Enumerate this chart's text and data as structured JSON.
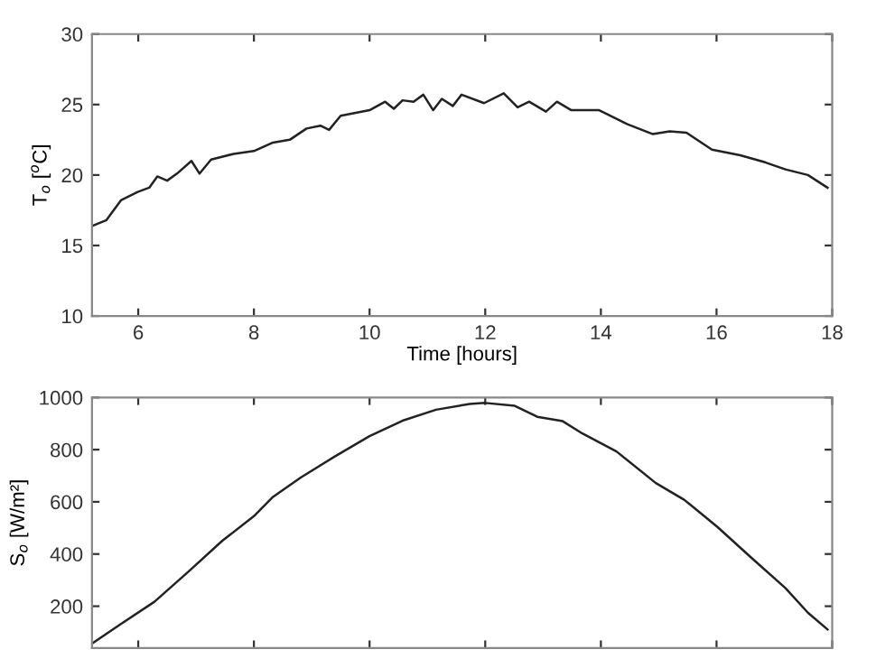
{
  "chart_data": [
    {
      "type": "line",
      "xlabel": "Time [hours]",
      "ylabel": "T$_{o}$ [$^{o}$C]",
      "xlim": [
        5.2,
        18
      ],
      "xticks": [
        6,
        8,
        10,
        12,
        14,
        16,
        18
      ],
      "ylim": [
        10,
        30
      ],
      "yticks": [
        10,
        15,
        20,
        25,
        30
      ],
      "series": [
        {
          "color": "#222222",
          "x": [
            5.21,
            5.45,
            5.7,
            5.99,
            6.19,
            6.33,
            6.5,
            6.67,
            6.92,
            7.06,
            7.26,
            7.65,
            8.0,
            8.33,
            8.62,
            8.91,
            9.15,
            9.3,
            9.5,
            10.0,
            10.27,
            10.42,
            10.57,
            10.76,
            10.93,
            11.1,
            11.25,
            11.44,
            11.59,
            11.98,
            12.32,
            12.56,
            12.76,
            13.05,
            13.24,
            13.49,
            13.97,
            14.46,
            14.9,
            15.19,
            15.48,
            15.92,
            16.41,
            16.84,
            17.19,
            17.58,
            17.92
          ],
          "values": [
            16.4,
            16.8,
            18.2,
            18.8,
            19.1,
            19.9,
            19.6,
            20.1,
            21.0,
            20.1,
            21.1,
            21.5,
            21.7,
            22.3,
            22.5,
            23.3,
            23.5,
            23.2,
            24.2,
            24.6,
            25.2,
            24.7,
            25.3,
            25.2,
            25.7,
            24.6,
            25.4,
            24.9,
            25.7,
            25.1,
            25.8,
            24.8,
            25.2,
            24.5,
            25.2,
            24.6,
            24.6,
            23.6,
            22.9,
            23.1,
            23.0,
            21.8,
            21.4,
            20.9,
            20.4,
            20.0,
            19.1
          ]
        }
      ]
    },
    {
      "type": "line",
      "ylabel": "S$_{o}$ [W/m²]",
      "xlim": [
        5.2,
        18
      ],
      "xticks": [
        6,
        8,
        10,
        12,
        14,
        16,
        18
      ],
      "ylim": [
        40,
        1000
      ],
      "yticks": [
        200,
        400,
        600,
        800,
        1000
      ],
      "tick_labels": "y",
      "series": [
        {
          "color": "#222222",
          "x": [
            5.21,
            5.7,
            6.28,
            6.87,
            7.45,
            8.0,
            8.33,
            8.81,
            9.4,
            10.0,
            10.57,
            11.15,
            11.73,
            12.0,
            12.51,
            12.9,
            13.34,
            13.68,
            14.27,
            14.95,
            15.44,
            16.02,
            16.6,
            17.19,
            17.58,
            17.92
          ],
          "values": [
            58,
            132,
            217,
            333,
            450,
            545,
            619,
            693,
            774,
            852,
            911,
            953,
            975,
            979,
            968,
            926,
            909,
            862,
            793,
            672,
            608,
            503,
            386,
            270,
            175,
            111
          ]
        }
      ]
    }
  ]
}
